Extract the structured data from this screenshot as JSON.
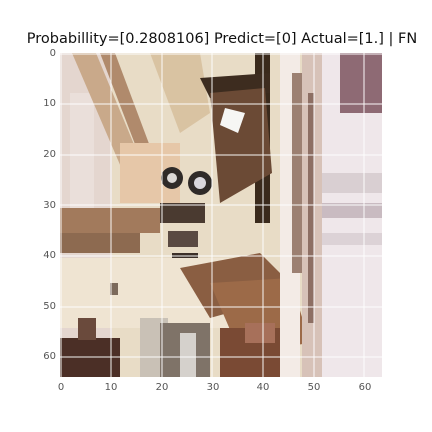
{
  "title": "Probabillity=[0.2808106] Predict=[0] Actual=[1.] | FN",
  "image_icon": "photo-crop",
  "axes": {
    "x_ticks": [
      "0",
      "10",
      "20",
      "30",
      "40",
      "50",
      "60"
    ],
    "y_ticks": [
      "0",
      "10",
      "20",
      "30",
      "40",
      "50",
      "60"
    ]
  }
}
